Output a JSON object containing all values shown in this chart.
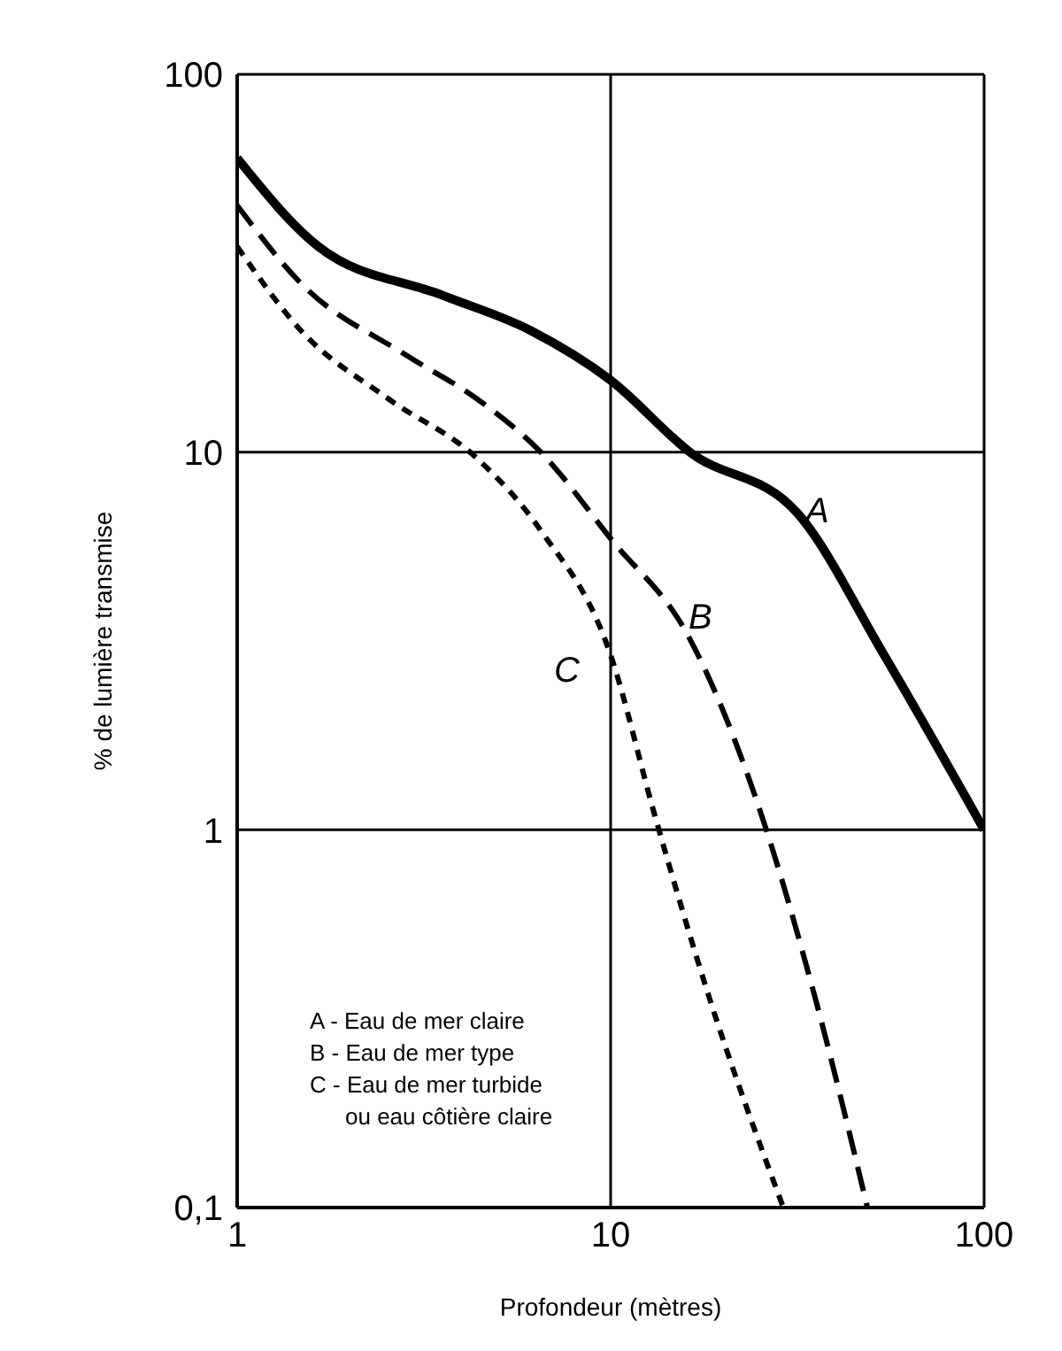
{
  "chart_data": {
    "type": "line",
    "xlabel": "Profondeur (mètres)",
    "ylabel": "% de lumière transmise",
    "log": "xy",
    "xlim": [
      1,
      100
    ],
    "ylim": [
      0.1,
      100
    ],
    "xticks": [
      1,
      10,
      100
    ],
    "yticks": [
      {
        "value": 0.1,
        "label": "0,1"
      },
      1,
      10,
      100
    ],
    "grid": true,
    "marker": "none",
    "series": [
      {
        "name": "A",
        "color": "#000000",
        "line_style": "solid",
        "x": [
          1,
          1.65,
          3.55,
          6.1,
          10,
          16.3,
          31.6,
          54,
          100
        ],
        "values": [
          60,
          35,
          26,
          21,
          15.5,
          10,
          6.9,
          2.9,
          1
        ]
      },
      {
        "name": "B",
        "color": "#000000",
        "line_style": "dashed",
        "x": [
          1,
          1.48,
          2.85,
          4.4,
          6.5,
          10,
          16.3,
          25.3,
          35,
          48.7
        ],
        "values": [
          45,
          28,
          18,
          13.8,
          10,
          5.9,
          3.2,
          1.1,
          0.37,
          0.1
        ]
      },
      {
        "name": "C",
        "color": "#000000",
        "line_style": "dotted",
        "x": [
          1,
          1.48,
          2.55,
          4.4,
          6.5,
          10,
          13.1,
          18.2,
          29
        ],
        "values": [
          35,
          21,
          13.8,
          9.6,
          6.2,
          2.9,
          1.1,
          0.37,
          0.1
        ]
      }
    ],
    "annotations": [
      "A - Eau de mer claire",
      "B - Eau de mer type",
      "C - Eau de mer turbide",
      "ou eau côtière claire"
    ]
  }
}
